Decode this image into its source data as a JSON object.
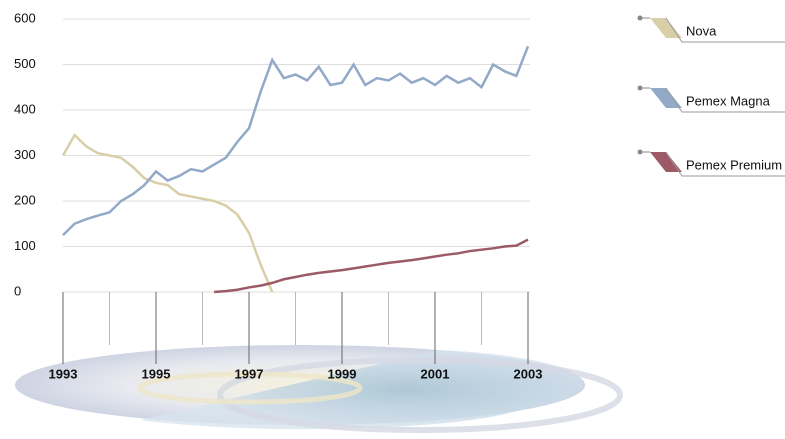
{
  "chart_data": {
    "type": "line",
    "x": [
      1993,
      1993.25,
      1993.5,
      1993.75,
      1994,
      1994.25,
      1994.5,
      1994.75,
      1995,
      1995.25,
      1995.5,
      1995.75,
      1996,
      1996.25,
      1996.5,
      1996.75,
      1997,
      1997.25,
      1997.5,
      1997.75,
      1998,
      1998.25,
      1998.5,
      1998.75,
      1999,
      1999.25,
      1999.5,
      1999.75,
      2000,
      2000.25,
      2000.5,
      2000.75,
      2001,
      2001.25,
      2001.5,
      2001.75,
      2002,
      2002.25,
      2002.5,
      2002.75,
      2003
    ],
    "series": [
      {
        "name": "Nova",
        "color": "#d8cfa8",
        "values": [
          300,
          345,
          320,
          305,
          300,
          295,
          275,
          250,
          240,
          235,
          215,
          210,
          205,
          200,
          190,
          170,
          130,
          60,
          0,
          null,
          null,
          null,
          null,
          null,
          null,
          null,
          null,
          null,
          null,
          null,
          null,
          null,
          null,
          null,
          null,
          null,
          null,
          null,
          null,
          null,
          null
        ]
      },
      {
        "name": "Pemex Magna",
        "color": "#93a9c8",
        "values": [
          125,
          150,
          160,
          168,
          175,
          200,
          215,
          235,
          265,
          245,
          255,
          270,
          265,
          280,
          295,
          330,
          360,
          440,
          510,
          470,
          478,
          465,
          495,
          455,
          460,
          500,
          455,
          470,
          465,
          480,
          460,
          470,
          455,
          475,
          460,
          470,
          450,
          500,
          485,
          475,
          540
        ]
      },
      {
        "name": "Pemex Premium",
        "color": "#9c5a66",
        "values": [
          null,
          null,
          null,
          null,
          null,
          null,
          null,
          null,
          null,
          null,
          null,
          null,
          null,
          0,
          2,
          5,
          10,
          14,
          20,
          28,
          33,
          38,
          42,
          45,
          48,
          52,
          56,
          60,
          64,
          67,
          70,
          74,
          78,
          82,
          85,
          90,
          93,
          96,
          100,
          102,
          115
        ]
      }
    ],
    "xlim": [
      1993,
      2003
    ],
    "xticks": [
      1993,
      1995,
      1997,
      1999,
      2001,
      2003
    ],
    "xminor_ticks": [
      1994,
      1996,
      1998,
      2000,
      2002
    ],
    "ylim": [
      0,
      600
    ],
    "yticks": [
      0,
      100,
      200,
      300,
      400,
      500,
      600
    ],
    "grid": true
  }
}
